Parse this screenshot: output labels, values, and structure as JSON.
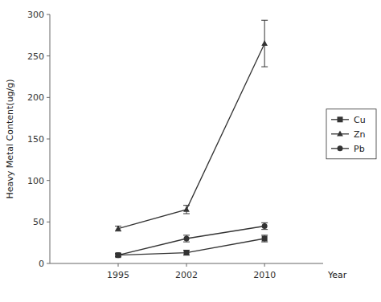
{
  "chart_data": {
    "type": "line",
    "x": [
      1995,
      2002,
      2010
    ],
    "xlim": [
      1988,
      2016
    ],
    "xticks": [
      1995,
      2002,
      2010
    ],
    "ylim": [
      0,
      300
    ],
    "yticks": [
      0,
      50,
      100,
      150,
      200,
      250,
      300
    ],
    "xlabel": "Year",
    "ylabel": "Heavy Metal Content(ug/g)",
    "grid": false,
    "legend": "right",
    "series": [
      {
        "name": "Cu",
        "color": "#333333",
        "marker": "square",
        "values": [
          10,
          13,
          30
        ],
        "errors": [
          2,
          3,
          4
        ]
      },
      {
        "name": "Zn",
        "color": "#333333",
        "marker": "triangle",
        "values": [
          42,
          65,
          265
        ],
        "errors": [
          3,
          5,
          28
        ]
      },
      {
        "name": "Pb",
        "color": "#333333",
        "marker": "circle",
        "values": [
          10,
          30,
          45
        ],
        "errors": [
          1.5,
          4,
          4
        ]
      }
    ]
  }
}
